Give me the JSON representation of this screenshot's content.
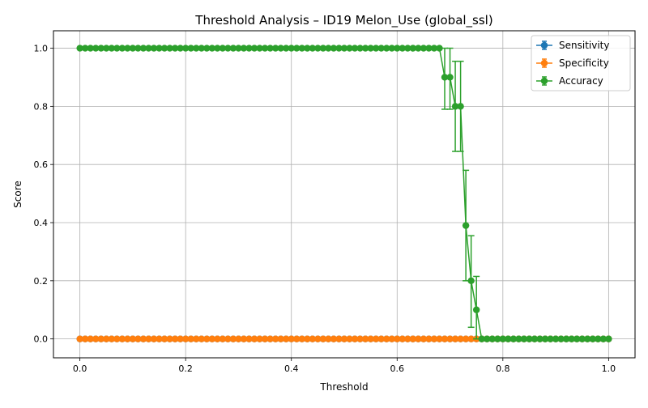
{
  "chart_data": {
    "type": "line",
    "title": "Threshold Analysis – ID19 Melon_Use (global_ssl)",
    "xlabel": "Threshold",
    "ylabel": "Score",
    "xlim": [
      -0.05,
      1.05
    ],
    "ylim": [
      -0.065,
      1.06
    ],
    "xticks": [
      0.0,
      0.2,
      0.4,
      0.6,
      0.8,
      1.0
    ],
    "xtick_labels": [
      "0.0",
      "0.2",
      "0.4",
      "0.6",
      "0.8",
      "1.0"
    ],
    "yticks": [
      0.0,
      0.2,
      0.4,
      0.6,
      0.8,
      1.0
    ],
    "ytick_labels": [
      "0.0",
      "0.2",
      "0.4",
      "0.6",
      "0.8",
      "1.0"
    ],
    "grid": true,
    "legend_position": "top-right",
    "x": [
      0.0,
      0.01,
      0.02,
      0.03,
      0.04,
      0.05,
      0.06,
      0.07,
      0.08,
      0.09,
      0.1,
      0.11,
      0.12,
      0.13,
      0.14,
      0.15,
      0.16,
      0.17,
      0.18,
      0.19,
      0.2,
      0.21,
      0.22,
      0.23,
      0.24,
      0.25,
      0.26,
      0.27,
      0.28,
      0.29,
      0.3,
      0.31,
      0.32,
      0.33,
      0.34,
      0.35,
      0.36,
      0.37,
      0.38,
      0.39,
      0.4,
      0.41,
      0.42,
      0.43,
      0.44,
      0.45,
      0.46,
      0.47,
      0.48,
      0.49,
      0.5,
      0.51,
      0.52,
      0.53,
      0.54,
      0.55,
      0.56,
      0.57,
      0.58,
      0.59,
      0.6,
      0.61,
      0.62,
      0.63,
      0.64,
      0.65,
      0.66,
      0.67,
      0.68,
      0.69,
      0.7,
      0.71,
      0.72,
      0.73,
      0.74,
      0.75,
      0.76,
      0.77,
      0.78,
      0.79,
      0.8,
      0.81,
      0.82,
      0.83,
      0.84,
      0.85,
      0.86,
      0.87,
      0.88,
      0.89,
      0.9,
      0.91,
      0.92,
      0.93,
      0.94,
      0.95,
      0.96,
      0.97,
      0.98,
      0.99,
      1.0
    ],
    "series": [
      {
        "name": "Sensitivity",
        "color": "#1f77b4",
        "values": [
          0,
          0,
          0,
          0,
          0,
          0,
          0,
          0,
          0,
          0,
          0,
          0,
          0,
          0,
          0,
          0,
          0,
          0,
          0,
          0,
          0,
          0,
          0,
          0,
          0,
          0,
          0,
          0,
          0,
          0,
          0,
          0,
          0,
          0,
          0,
          0,
          0,
          0,
          0,
          0,
          0,
          0,
          0,
          0,
          0,
          0,
          0,
          0,
          0,
          0,
          0,
          0,
          0,
          0,
          0,
          0,
          0,
          0,
          0,
          0,
          0,
          0,
          0,
          0,
          0,
          0,
          0,
          0,
          0,
          0,
          0,
          0,
          0,
          0,
          0,
          0,
          0,
          0,
          0,
          0,
          0,
          0,
          0,
          0,
          0,
          0,
          0,
          0,
          0,
          0,
          0,
          0,
          0,
          0,
          0,
          0,
          0,
          0,
          0,
          0,
          0
        ],
        "errors": []
      },
      {
        "name": "Specificity",
        "color": "#ff7f0e",
        "values": [
          0,
          0,
          0,
          0,
          0,
          0,
          0,
          0,
          0,
          0,
          0,
          0,
          0,
          0,
          0,
          0,
          0,
          0,
          0,
          0,
          0,
          0,
          0,
          0,
          0,
          0,
          0,
          0,
          0,
          0,
          0,
          0,
          0,
          0,
          0,
          0,
          0,
          0,
          0,
          0,
          0,
          0,
          0,
          0,
          0,
          0,
          0,
          0,
          0,
          0,
          0,
          0,
          0,
          0,
          0,
          0,
          0,
          0,
          0,
          0,
          0,
          0,
          0,
          0,
          0,
          0,
          0,
          0,
          0,
          0,
          0,
          0,
          0,
          0,
          0,
          0,
          0,
          0,
          0,
          0,
          0,
          0,
          0,
          0,
          0,
          0,
          0,
          0,
          0,
          0,
          0,
          0,
          0,
          0,
          0,
          0,
          0,
          0,
          0,
          0,
          0
        ],
        "errors": []
      },
      {
        "name": "Accuracy",
        "color": "#2ca02c",
        "values": [
          1,
          1,
          1,
          1,
          1,
          1,
          1,
          1,
          1,
          1,
          1,
          1,
          1,
          1,
          1,
          1,
          1,
          1,
          1,
          1,
          1,
          1,
          1,
          1,
          1,
          1,
          1,
          1,
          1,
          1,
          1,
          1,
          1,
          1,
          1,
          1,
          1,
          1,
          1,
          1,
          1,
          1,
          1,
          1,
          1,
          1,
          1,
          1,
          1,
          1,
          1,
          1,
          1,
          1,
          1,
          1,
          1,
          1,
          1,
          1,
          1,
          1,
          1,
          1,
          1,
          1,
          1,
          1,
          1,
          0.9,
          0.9,
          0.8,
          0.8,
          0.39,
          0.2,
          0.1,
          0,
          0,
          0,
          0,
          0,
          0,
          0,
          0,
          0,
          0,
          0,
          0,
          0,
          0,
          0,
          0,
          0,
          0,
          0,
          0,
          0,
          0,
          0,
          0,
          0
        ],
        "errors": [
          {
            "x": 0.69,
            "lo": 0.79,
            "hi": 1.0
          },
          {
            "x": 0.7,
            "lo": 0.79,
            "hi": 1.0
          },
          {
            "x": 0.71,
            "lo": 0.645,
            "hi": 0.955
          },
          {
            "x": 0.72,
            "lo": 0.645,
            "hi": 0.955
          },
          {
            "x": 0.73,
            "lo": 0.2,
            "hi": 0.58
          },
          {
            "x": 0.74,
            "lo": 0.04,
            "hi": 0.355
          },
          {
            "x": 0.75,
            "lo": 0.0,
            "hi": 0.215
          }
        ]
      }
    ]
  }
}
